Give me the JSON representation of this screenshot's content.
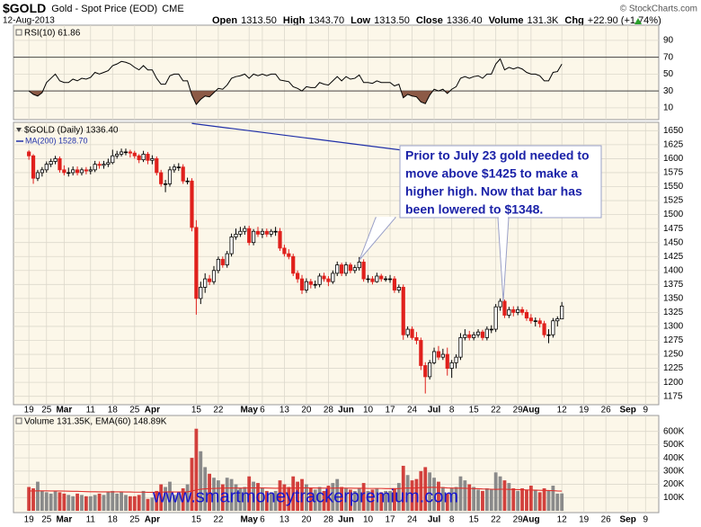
{
  "header": {
    "symbol": "$GOLD",
    "name": "Gold - Spot Price (EOD)",
    "exchange": "CME",
    "date": "12-Aug-2013",
    "credit": "© StockCharts.com",
    "quote": [
      {
        "label": "Open",
        "value": "1313.50"
      },
      {
        "label": "High",
        "value": "1343.70"
      },
      {
        "label": "Low",
        "value": "1313.50"
      },
      {
        "label": "Close",
        "value": "1336.40"
      },
      {
        "label": "Volume",
        "value": "131.3K"
      },
      {
        "label": "Chg",
        "value": "+22.90 (+1.74%)"
      }
    ]
  },
  "chart_data": [
    {
      "type": "line",
      "label": "RSI(10) 61.86",
      "color": "#000000",
      "oversold_color": "#8c5a46",
      "overbought_color": "#7a9a63",
      "levels": [
        30,
        70
      ],
      "ylim": [
        -4,
        108
      ],
      "yticks": [
        10,
        30,
        50,
        70,
        90
      ],
      "values": [
        30,
        26,
        24,
        28,
        40,
        45,
        50,
        42,
        40,
        40,
        44,
        42,
        45,
        44,
        46,
        52,
        50,
        52,
        54,
        60,
        62,
        65,
        64,
        62,
        58,
        55,
        60,
        55,
        55,
        45,
        38,
        38,
        48,
        50,
        50,
        42,
        42,
        25,
        14,
        20,
        24,
        23,
        28,
        33,
        32,
        37,
        45,
        47,
        48,
        50,
        45,
        50,
        48,
        50,
        48,
        50,
        50,
        43,
        42,
        41,
        35,
        33,
        30,
        35,
        34,
        34,
        40,
        38,
        37,
        42,
        47,
        42,
        47,
        44,
        45,
        49,
        40,
        40,
        39,
        42,
        40,
        40,
        40,
        36,
        38,
        22,
        26,
        24,
        23,
        17,
        15,
        25,
        32,
        30,
        32,
        27,
        32,
        35,
        45,
        47,
        45,
        47,
        48,
        45,
        50,
        50,
        62,
        68,
        55,
        58,
        56,
        58,
        56,
        52,
        50,
        50,
        48,
        42,
        42,
        52,
        53,
        61.86
      ]
    },
    {
      "type": "candlestick",
      "label": "$GOLD (Daily) 1336.40",
      "up_color": "#ffffff",
      "down_color": "#e0201c",
      "xlim": [
        -3.5,
        143
      ],
      "xticks": [
        {
          "value": 0,
          "label": "19"
        },
        {
          "value": 4,
          "label": "25"
        },
        {
          "value": 8,
          "label": "Mar"
        },
        {
          "value": 14,
          "label": "11"
        },
        {
          "value": 19,
          "label": "18"
        },
        {
          "value": 24,
          "label": "25"
        },
        {
          "value": 28,
          "label": "Apr"
        },
        {
          "value": 38,
          "label": "15"
        },
        {
          "value": 43,
          "label": "22"
        },
        {
          "value": 50,
          "label": "May"
        },
        {
          "value": 53,
          "label": "6"
        },
        {
          "value": 58,
          "label": "13"
        },
        {
          "value": 63,
          "label": "20"
        },
        {
          "value": 68,
          "label": "28"
        },
        {
          "value": 72,
          "label": "Jun"
        },
        {
          "value": 77,
          "label": "10"
        },
        {
          "value": 82,
          "label": "17"
        },
        {
          "value": 87,
          "label": "24"
        },
        {
          "value": 92,
          "label": "Jul"
        },
        {
          "value": 96,
          "label": "8"
        },
        {
          "value": 101,
          "label": "15"
        },
        {
          "value": 106,
          "label": "22"
        },
        {
          "value": 111,
          "label": "29"
        },
        {
          "value": 114,
          "label": "Aug"
        },
        {
          "value": 121,
          "label": "12"
        },
        {
          "value": 126,
          "label": "19"
        },
        {
          "value": 131,
          "label": "26"
        },
        {
          "value": 136,
          "label": "Sep"
        },
        {
          "value": 140,
          "label": "9"
        }
      ],
      "ylim": [
        1160,
        1665
      ],
      "yticks": [
        1175,
        1200,
        1225,
        1250,
        1275,
        1300,
        1325,
        1350,
        1375,
        1400,
        1425,
        1450,
        1475,
        1500,
        1525,
        1550,
        1575,
        1600,
        1625,
        1650
      ],
      "open": [
        1612,
        1605,
        1565,
        1575,
        1580,
        1590,
        1595,
        1600,
        1580,
        1575,
        1575,
        1580,
        1575,
        1580,
        1578,
        1580,
        1590,
        1588,
        1590,
        1593,
        1605,
        1608,
        1612,
        1612,
        1610,
        1605,
        1598,
        1608,
        1597,
        1600,
        1575,
        1555,
        1555,
        1580,
        1585,
        1585,
        1560,
        1560,
        1477,
        1350,
        1370,
        1385,
        1380,
        1400,
        1420,
        1410,
        1430,
        1460,
        1465,
        1470,
        1475,
        1450,
        1470,
        1465,
        1470,
        1465,
        1470,
        1470,
        1440,
        1430,
        1425,
        1395,
        1385,
        1365,
        1380,
        1375,
        1375,
        1390,
        1385,
        1380,
        1395,
        1410,
        1395,
        1410,
        1400,
        1405,
        1415,
        1385,
        1385,
        1380,
        1390,
        1385,
        1385,
        1385,
        1365,
        1370,
        1285,
        1295,
        1280,
        1275,
        1230,
        1210,
        1235,
        1255,
        1245,
        1250,
        1225,
        1235,
        1245,
        1280,
        1285,
        1280,
        1285,
        1290,
        1280,
        1295,
        1295,
        1335,
        1345,
        1320,
        1330,
        1325,
        1330,
        1325,
        1315,
        1310,
        1310,
        1305,
        1285,
        1285,
        1310,
        1313.5
      ],
      "high": [
        1615,
        1608,
        1580,
        1585,
        1595,
        1600,
        1605,
        1604,
        1588,
        1584,
        1586,
        1586,
        1584,
        1585,
        1586,
        1596,
        1595,
        1596,
        1600,
        1616,
        1614,
        1618,
        1618,
        1616,
        1614,
        1608,
        1614,
        1612,
        1606,
        1604,
        1580,
        1562,
        1586,
        1590,
        1592,
        1590,
        1566,
        1565,
        1490,
        1380,
        1395,
        1392,
        1408,
        1425,
        1425,
        1435,
        1466,
        1475,
        1478,
        1480,
        1480,
        1474,
        1478,
        1475,
        1475,
        1474,
        1478,
        1476,
        1446,
        1438,
        1430,
        1400,
        1392,
        1386,
        1385,
        1382,
        1395,
        1396,
        1390,
        1400,
        1416,
        1414,
        1415,
        1414,
        1410,
        1424,
        1420,
        1392,
        1390,
        1396,
        1394,
        1390,
        1392,
        1390,
        1375,
        1375,
        1300,
        1300,
        1290,
        1280,
        1236,
        1240,
        1262,
        1265,
        1260,
        1262,
        1240,
        1250,
        1288,
        1295,
        1292,
        1290,
        1295,
        1294,
        1300,
        1302,
        1340,
        1350,
        1348,
        1335,
        1336,
        1336,
        1335,
        1330,
        1322,
        1316,
        1315,
        1310,
        1295,
        1315,
        1318,
        1343.7
      ],
      "low": [
        1598,
        1555,
        1560,
        1568,
        1575,
        1585,
        1590,
        1575,
        1570,
        1568,
        1570,
        1570,
        1570,
        1572,
        1572,
        1576,
        1582,
        1582,
        1585,
        1590,
        1600,
        1604,
        1606,
        1602,
        1600,
        1592,
        1594,
        1590,
        1590,
        1570,
        1550,
        1540,
        1550,
        1575,
        1578,
        1555,
        1554,
        1470,
        1321,
        1340,
        1360,
        1374,
        1375,
        1395,
        1405,
        1405,
        1425,
        1455,
        1460,
        1464,
        1445,
        1445,
        1460,
        1458,
        1460,
        1460,
        1462,
        1435,
        1425,
        1420,
        1390,
        1378,
        1358,
        1360,
        1368,
        1368,
        1370,
        1380,
        1372,
        1376,
        1390,
        1390,
        1390,
        1395,
        1395,
        1400,
        1380,
        1378,
        1375,
        1378,
        1380,
        1380,
        1378,
        1360,
        1360,
        1276,
        1280,
        1276,
        1268,
        1222,
        1180,
        1205,
        1232,
        1240,
        1240,
        1212,
        1208,
        1225,
        1240,
        1275,
        1275,
        1275,
        1280,
        1275,
        1275,
        1288,
        1290,
        1328,
        1315,
        1315,
        1318,
        1320,
        1320,
        1310,
        1305,
        1300,
        1298,
        1280,
        1270,
        1280,
        1300,
        1313.5
      ],
      "close": [
        1605,
        1565,
        1575,
        1580,
        1590,
        1595,
        1600,
        1580,
        1575,
        1575,
        1580,
        1575,
        1580,
        1578,
        1580,
        1590,
        1588,
        1590,
        1593,
        1605,
        1608,
        1612,
        1612,
        1610,
        1605,
        1598,
        1608,
        1597,
        1600,
        1575,
        1555,
        1555,
        1580,
        1585,
        1585,
        1560,
        1560,
        1477,
        1350,
        1370,
        1385,
        1380,
        1400,
        1420,
        1410,
        1430,
        1460,
        1465,
        1470,
        1475,
        1450,
        1470,
        1465,
        1470,
        1465,
        1470,
        1470,
        1440,
        1430,
        1425,
        1395,
        1385,
        1365,
        1380,
        1375,
        1375,
        1390,
        1385,
        1380,
        1395,
        1410,
        1395,
        1410,
        1400,
        1405,
        1415,
        1385,
        1385,
        1380,
        1390,
        1385,
        1385,
        1385,
        1365,
        1370,
        1285,
        1295,
        1280,
        1275,
        1230,
        1210,
        1235,
        1255,
        1245,
        1250,
        1225,
        1235,
        1245,
        1280,
        1285,
        1280,
        1285,
        1290,
        1280,
        1295,
        1295,
        1335,
        1345,
        1320,
        1330,
        1325,
        1330,
        1325,
        1315,
        1310,
        1310,
        1305,
        1285,
        1285,
        1310,
        1313.5,
        1336.4
      ],
      "series": [
        {
          "name": "MA(200) 1528.70",
          "color": "#2030a8",
          "values": [
            null,
            null,
            null,
            null,
            null,
            null,
            null,
            null,
            null,
            null,
            null,
            null,
            null,
            null,
            null,
            null,
            null,
            null,
            null,
            null,
            null,
            null,
            null,
            null,
            null,
            null,
            null,
            null,
            null,
            null,
            null,
            null,
            null,
            null,
            null,
            null,
            null,
            1663,
            1662,
            1661,
            1660,
            1659,
            1658,
            1657,
            1656,
            1655,
            1654,
            1653,
            1652,
            1651,
            1650,
            1649,
            1648,
            1647,
            1646,
            1645,
            1644,
            1643,
            1642,
            1641,
            1640,
            1639,
            1638,
            1637,
            1636,
            1635,
            1634,
            1633,
            1632,
            1631,
            1630,
            1629,
            1628,
            1627,
            1626,
            1625,
            1624,
            1623,
            1622,
            1621,
            1620,
            1619,
            1618,
            1617,
            1616,
            1614,
            1611,
            1609,
            1607,
            1604,
            1602,
            1599,
            1597,
            1595,
            1592,
            1590,
            1588,
            1585,
            1583,
            1580,
            1578,
            1576,
            1573,
            1571,
            1569,
            1566,
            1564,
            1561,
            1559,
            1557,
            1554,
            1552,
            1550,
            1547,
            1545,
            1542,
            1540,
            1538,
            1535,
            1533,
            1531,
            1528.7
          ]
        }
      ],
      "annotation": [
        "Prior to July 23 gold needed to",
        "move above $1425 to make a",
        "higher high. Now that bar has",
        "been lowered to $1348."
      ]
    },
    {
      "type": "bar",
      "label": "Volume 131.35K, EMA(60) 148.89K",
      "up_color": "#8a8a8a",
      "down_color": "#d2403c",
      "ylim": [
        0,
        720000
      ],
      "yticks": [
        {
          "value": 100000,
          "label": "100K"
        },
        {
          "value": 200000,
          "label": "200K"
        },
        {
          "value": 300000,
          "label": "300K"
        },
        {
          "value": 400000,
          "label": "400K"
        },
        {
          "value": 500000,
          "label": "500K"
        },
        {
          "value": 600000,
          "label": "600K"
        }
      ],
      "values": [
        180000,
        170000,
        220000,
        150000,
        140000,
        130000,
        150000,
        140000,
        130000,
        120000,
        110000,
        130000,
        120000,
        110000,
        110000,
        120000,
        130000,
        120000,
        140000,
        150000,
        130000,
        140000,
        120000,
        110000,
        110000,
        120000,
        150000,
        90000,
        100000,
        150000,
        200000,
        180000,
        220000,
        120000,
        130000,
        170000,
        200000,
        400000,
        620000,
        450000,
        330000,
        280000,
        250000,
        230000,
        200000,
        250000,
        240000,
        200000,
        170000,
        180000,
        260000,
        220000,
        210000,
        170000,
        150000,
        140000,
        150000,
        230000,
        200000,
        180000,
        260000,
        220000,
        240000,
        200000,
        170000,
        160000,
        180000,
        150000,
        190000,
        210000,
        240000,
        180000,
        170000,
        160000,
        150000,
        170000,
        210000,
        150000,
        160000,
        170000,
        140000,
        150000,
        150000,
        170000,
        210000,
        340000,
        270000,
        230000,
        240000,
        300000,
        330000,
        290000,
        250000,
        220000,
        180000,
        130000,
        170000,
        180000,
        260000,
        230000,
        200000,
        180000,
        160000,
        150000,
        170000,
        160000,
        290000,
        260000,
        230000,
        210000,
        170000,
        150000,
        170000,
        160000,
        190000,
        160000,
        140000,
        170000,
        150000,
        190000,
        130000,
        131350
      ],
      "series": [
        {
          "color": "#e0302c",
          "values": [
            150000,
            150000,
            151000,
            151000,
            151000,
            150000,
            150000,
            150000,
            149000,
            148000,
            147000,
            147000,
            146000,
            145000,
            144000,
            144000,
            143000,
            143000,
            143000,
            143000,
            143000,
            143000,
            142000,
            142000,
            141000,
            141000,
            141000,
            140000,
            140000,
            140000,
            141000,
            142000,
            143000,
            142000,
            142000,
            142000,
            143000,
            149000,
            158000,
            163000,
            166000,
            168000,
            169000,
            170000,
            171000,
            172000,
            172000,
            172000,
            172000,
            172000,
            173000,
            173000,
            173000,
            173000,
            172000,
            171000,
            170000,
            171000,
            171000,
            171000,
            172000,
            172000,
            173000,
            173000,
            173000,
            172000,
            172000,
            171000,
            171000,
            171000,
            172000,
            172000,
            171000,
            171000,
            170000,
            170000,
            170000,
            169000,
            169000,
            169000,
            169000,
            168000,
            168000,
            168000,
            168000,
            171000,
            172000,
            172000,
            173000,
            175000,
            176000,
            177000,
            177000,
            176000,
            175000,
            173000,
            172000,
            171000,
            171000,
            170000,
            169000,
            168000,
            167000,
            165000,
            164000,
            163000,
            162000,
            163000,
            163000,
            162000,
            161000,
            160000,
            159000,
            158000,
            157000,
            156000,
            155000,
            154000,
            153000,
            152000,
            150000,
            148890
          ]
        }
      ]
    }
  ],
  "watermark": "www.smartmoneytrackerpremium.com"
}
